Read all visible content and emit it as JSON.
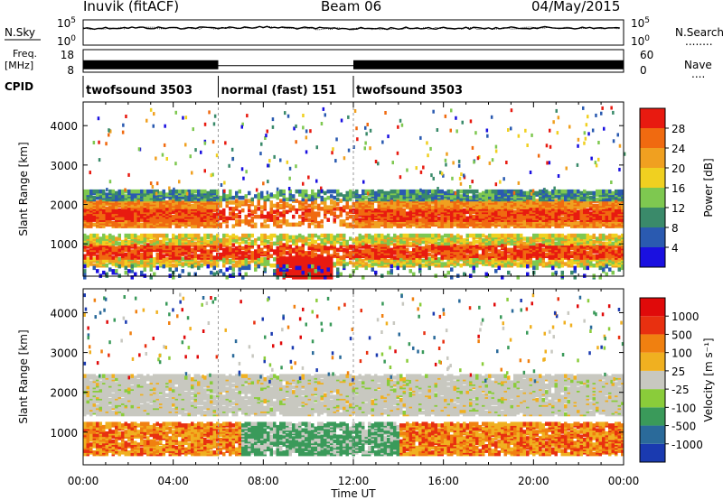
{
  "header": {
    "station": "Inuvik (fitACF)",
    "beam": "Beam 06",
    "date": "04/May/2015"
  },
  "chart_data": [
    {
      "type": "line",
      "panel": "noise",
      "left_label": "N.Sky",
      "left_ticks": [
        "10^5",
        "10^0"
      ],
      "right_ticks": [
        "10^5",
        "10^0"
      ],
      "right_label": "N.Search",
      "series": [
        {
          "name": "N.Sky",
          "x": [
            0,
            2,
            4,
            6,
            8,
            10,
            12,
            14,
            16,
            18,
            20,
            22,
            24
          ],
          "y": [
            3000,
            4000,
            3500,
            4000,
            5000,
            3000,
            2500,
            3000,
            3500,
            3000,
            4000,
            3500,
            3000
          ]
        },
        {
          "name": "N.Search",
          "x": [
            0,
            2,
            4,
            6,
            8,
            10,
            12,
            14,
            16,
            18,
            20,
            22,
            24
          ],
          "y": [
            2500,
            3500,
            3000,
            3500,
            4500,
            2500,
            2200,
            2600,
            3000,
            2700,
            3500,
            3000,
            2600
          ]
        }
      ],
      "ylim": [
        1,
        100000
      ],
      "log_scale": true
    },
    {
      "type": "line",
      "panel": "frequency",
      "left_label_top": "Freq.",
      "left_label_unit": "[MHz]",
      "left_ticks": [
        "18",
        "8"
      ],
      "right_ticks": [
        "60",
        "0"
      ],
      "right_label": "Nave",
      "segments": [
        {
          "x0": 0.0,
          "x1": 6.0,
          "mode": "twofsound"
        },
        {
          "x0": 6.0,
          "x1": 12.0,
          "mode": "normal"
        },
        {
          "x0": 12.0,
          "x1": 24.0,
          "mode": "twofsound"
        }
      ],
      "frequency_mhz": 10.5,
      "frequency_range": [
        8,
        18
      ]
    },
    {
      "type": "table",
      "panel": "cpid",
      "label": "CPID",
      "entries": [
        {
          "x0": 0.0,
          "x1": 6.0,
          "text": "twofsound 3503"
        },
        {
          "x0": 6.0,
          "x1": 12.0,
          "text": "normal (fast) 151"
        },
        {
          "x0": 12.0,
          "x1": 24.0,
          "text": "twofsound 3503"
        }
      ]
    },
    {
      "type": "heatmap",
      "panel": "power",
      "ylabel": "Slant Range [km]",
      "ylim": [
        180,
        4600
      ],
      "y_ticks": [
        1000,
        2000,
        3000,
        4000
      ],
      "colorbar_label": "Power [dB]",
      "colorbar_ticks": [
        "4",
        "8",
        "12",
        "16",
        "20",
        "24",
        "28"
      ],
      "colors": [
        "#1a10e0",
        "#2a5ab0",
        "#3a8a6a",
        "#7ec850",
        "#f0d020",
        "#f0a020",
        "#f06a10",
        "#e81a10"
      ]
    },
    {
      "type": "heatmap",
      "panel": "velocity",
      "ylabel": "Slant Range [km]",
      "ylim": [
        180,
        4600
      ],
      "y_ticks": [
        1000,
        2000,
        3000,
        4000
      ],
      "colorbar_label": "Velocity [m s⁻¹]",
      "colorbar_ticks": [
        "1000",
        "500",
        "100",
        "25",
        "-25",
        "-100",
        "-500",
        "-1000"
      ],
      "colors": [
        "#1a3ab0",
        "#2a6a9a",
        "#3a9a5a",
        "#8acc3a",
        "#c8c8c0",
        "#f0b020",
        "#f08010",
        "#e83010",
        "#e00a0a"
      ]
    }
  ],
  "xaxis": {
    "title": "Time UT",
    "ticks": [
      "00:00",
      "04:00",
      "08:00",
      "12:00",
      "16:00",
      "20:00",
      "00:00"
    ],
    "xlim": [
      0,
      24
    ]
  },
  "legend_right": {
    "search_dots": "........",
    "nave_dots": "...."
  }
}
